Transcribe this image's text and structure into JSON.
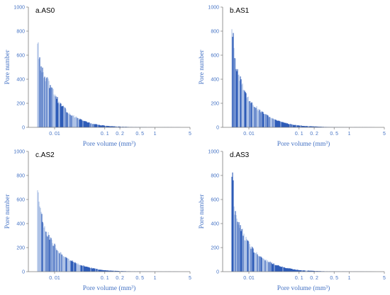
{
  "figure": {
    "colors": {
      "bar_dark": "#2f5cb8",
      "bar_light": "#aec3e6",
      "axis": "#7a7a7a",
      "text": "#4472c4"
    }
  },
  "chart_data": [
    {
      "type": "bar",
      "title": "a.AS0",
      "xlabel": "Pore volume (mm³)",
      "ylabel": "Pore number",
      "x_scale": "log",
      "xlim": [
        0.003,
        5
      ],
      "ylim": [
        0,
        1000
      ],
      "yticks": [
        "0",
        "200",
        "400",
        "600",
        "800",
        "1000"
      ],
      "xticks": [
        {
          "label": "0. 01",
          "value": 0.01
        },
        {
          "label": "0. 1",
          "value": 0.1
        },
        {
          "label": "0. 2",
          "value": 0.2
        },
        {
          "label": "0. 5",
          "value": 0.5
        },
        {
          "label": "1",
          "value": 1
        },
        {
          "label": "5",
          "value": 5
        }
      ],
      "x": [
        0.0045,
        0.0046,
        0.0048,
        0.005,
        0.0055,
        0.006,
        0.007,
        0.008,
        0.01,
        0.012,
        0.015,
        0.02,
        0.03,
        0.05,
        0.08,
        0.12,
        0.2,
        0.3,
        0.5,
        1.0,
        2.0,
        5.0
      ],
      "values": [
        730,
        700,
        620,
        520,
        470,
        430,
        390,
        340,
        270,
        210,
        160,
        110,
        70,
        35,
        18,
        10,
        6,
        3,
        2,
        1,
        1,
        0
      ]
    },
    {
      "type": "bar",
      "title": "b.AS1",
      "xlabel": "Pore volume (mm³)",
      "ylabel": "Pore number",
      "x_scale": "log",
      "xlim": [
        0.003,
        5
      ],
      "ylim": [
        0,
        1000
      ],
      "yticks": [
        "0",
        "200",
        "400",
        "600",
        "800",
        "1000"
      ],
      "xticks": [
        {
          "label": "0. 01",
          "value": 0.01
        },
        {
          "label": "0. 1",
          "value": 0.1
        },
        {
          "label": "0. 2",
          "value": 0.2
        },
        {
          "label": "0. 5",
          "value": 0.5
        },
        {
          "label": "1",
          "value": 1
        },
        {
          "label": "5",
          "value": 5
        }
      ],
      "x": [
        0.0045,
        0.0046,
        0.0048,
        0.005,
        0.0055,
        0.006,
        0.007,
        0.008,
        0.01,
        0.012,
        0.015,
        0.02,
        0.03,
        0.05,
        0.08,
        0.12,
        0.2,
        0.3,
        0.5,
        1.0,
        2.0,
        5.0
      ],
      "values": [
        850,
        820,
        760,
        600,
        520,
        460,
        360,
        290,
        230,
        190,
        150,
        110,
        70,
        38,
        20,
        12,
        7,
        4,
        2,
        1,
        1,
        0
      ]
    },
    {
      "type": "bar",
      "title": "c.AS2",
      "xlabel": "Pore volume (mm³)",
      "ylabel": "Pore number",
      "x_scale": "log",
      "xlim": [
        0.003,
        5
      ],
      "ylim": [
        0,
        1000
      ],
      "yticks": [
        "0",
        "200",
        "400",
        "600",
        "800",
        "1000"
      ],
      "xticks": [
        {
          "label": "0. 01",
          "value": 0.01
        },
        {
          "label": "0. 1",
          "value": 0.1
        },
        {
          "label": "0. 2",
          "value": 0.2
        },
        {
          "label": "0. 5",
          "value": 0.5
        },
        {
          "label": "1",
          "value": 1
        },
        {
          "label": "5",
          "value": 5
        }
      ],
      "x": [
        0.0045,
        0.0046,
        0.0048,
        0.005,
        0.0055,
        0.006,
        0.007,
        0.008,
        0.01,
        0.012,
        0.015,
        0.02,
        0.03,
        0.05,
        0.08,
        0.12,
        0.2,
        0.3,
        0.5,
        1.0,
        2.0,
        5.0
      ],
      "values": [
        700,
        670,
        600,
        520,
        450,
        390,
        320,
        270,
        210,
        170,
        130,
        95,
        60,
        32,
        16,
        9,
        5,
        3,
        2,
        1,
        1,
        0
      ]
    },
    {
      "type": "bar",
      "title": "d.AS3",
      "xlabel": "Pore volume (mm³)",
      "ylabel": "Pore number",
      "x_scale": "log",
      "xlim": [
        0.003,
        5
      ],
      "ylim": [
        0,
        1000
      ],
      "yticks": [
        "0",
        "200",
        "400",
        "600",
        "800",
        "1000"
      ],
      "xticks": [
        {
          "label": "0. 01",
          "value": 0.01
        },
        {
          "label": "0. 1",
          "value": 0.1
        },
        {
          "label": "0. 2",
          "value": 0.2
        },
        {
          "label": "0. 5",
          "value": 0.5
        },
        {
          "label": "1",
          "value": 1
        },
        {
          "label": "5",
          "value": 5
        }
      ],
      "x": [
        0.0045,
        0.0046,
        0.0048,
        0.005,
        0.0055,
        0.006,
        0.007,
        0.008,
        0.01,
        0.012,
        0.015,
        0.02,
        0.03,
        0.05,
        0.08,
        0.12,
        0.2,
        0.3,
        0.5,
        1.0,
        2.0,
        5.0
      ],
      "values": [
        810,
        780,
        700,
        520,
        460,
        420,
        350,
        290,
        230,
        180,
        140,
        100,
        65,
        35,
        18,
        10,
        6,
        3,
        2,
        1,
        1,
        0
      ]
    }
  ]
}
